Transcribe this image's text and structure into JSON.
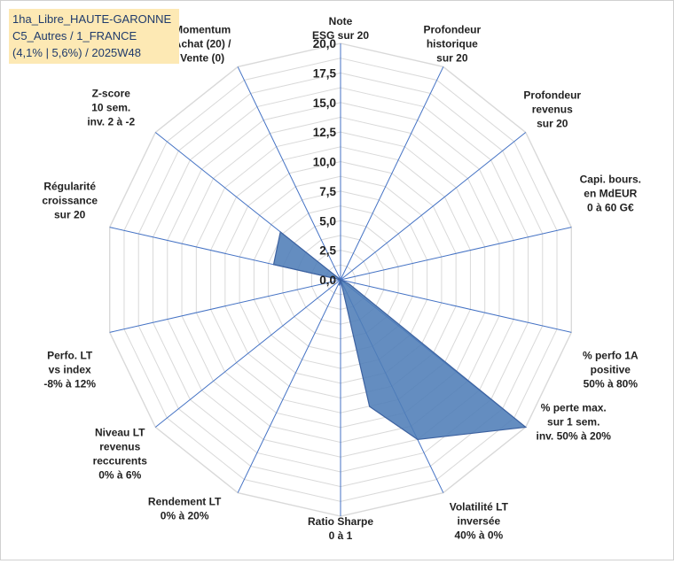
{
  "title_box": {
    "line1": "1ha_Libre_HAUTE-GARONNE",
    "line2": "C5_Autres / 1_FRANCE",
    "line3": "(4,1% | 5,6%) / 2025W48"
  },
  "colors": {
    "fill": "#4f7db7",
    "stroke": "#3d62a0",
    "grid": "#d9d9d9",
    "spoke": "#4472c4",
    "title_bg": "#fde9b4",
    "title_text": "#1f3a6b"
  },
  "chart_data": {
    "type": "radar",
    "rmin": 0,
    "rmax": 20,
    "tick_step": 1.25,
    "tick_labels": [
      "0,0",
      "2,5",
      "5,0",
      "7,5",
      "10,0",
      "12,5",
      "15,0",
      "17,5",
      "20,0"
    ],
    "tick_label_values": [
      0,
      2.5,
      5,
      7.5,
      10,
      12.5,
      15,
      17.5,
      20
    ],
    "axes": [
      {
        "label": [
          "Note",
          "ESG sur 20"
        ],
        "value": 0
      },
      {
        "label": [
          "Profondeur",
          "historique",
          "sur 20"
        ],
        "value": 0
      },
      {
        "label": [
          "Profondeur",
          "revenus",
          "sur 20"
        ],
        "value": 0
      },
      {
        "label": [
          "Capi. bours.",
          "en MdEUR",
          "0 à 60 G€"
        ],
        "value": 0
      },
      {
        "label": [
          "% perfo 1A",
          "positive",
          "50% à 80%"
        ],
        "value": 0
      },
      {
        "label": [
          "% perte max.",
          "sur 1 sem.",
          "inv. 50% à 20%"
        ],
        "value": 20
      },
      {
        "label": [
          "Volatilité LT",
          "inversée",
          "40% à 0%"
        ],
        "value": 15
      },
      {
        "label": [
          "Ratio Sharpe",
          "0 à 1"
        ],
        "value": 0
      },
      {
        "label": [
          "Rendement LT",
          "0% à 20%"
        ],
        "value": 0
      },
      {
        "label": [
          "Niveau LT",
          "revenus",
          "reccurents",
          "0% à 6%"
        ],
        "value": 0
      },
      {
        "label": [
          "Perfo. LT",
          "vs index",
          "-8% à 12%"
        ],
        "value": 0
      },
      {
        "label": [
          "Régularité",
          "croissance",
          "sur 20"
        ],
        "value": 5.8
      },
      {
        "label": [
          "Z-score",
          "10 sem.",
          "inv. 2 à -2"
        ],
        "value": 6.5
      },
      {
        "label": [
          "Momentum",
          "Achat (20) /",
          "Vente (0)"
        ],
        "value": 0
      }
    ],
    "extra_points": [
      {
        "between": [
          "% perfo 1A",
          "% perte max."
        ],
        "value": 0.8
      },
      {
        "between": [
          "Ratio Sharpe",
          "Volatilité LT"
        ],
        "value": 11
      },
      {
        "between": [
          "Ratio Sharpe",
          "Rendement LT"
        ],
        "value": 0.5
      }
    ]
  }
}
